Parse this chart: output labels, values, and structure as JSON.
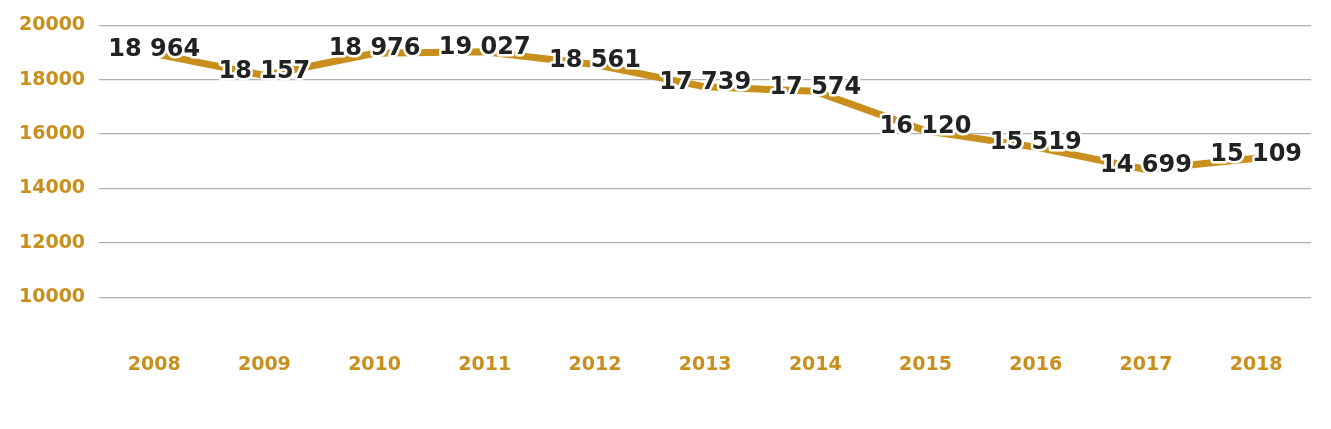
{
  "chart_data": {
    "type": "line",
    "categories": [
      "2008",
      "2009",
      "2010",
      "2011",
      "2012",
      "2013",
      "2014",
      "2015",
      "2016",
      "2017",
      "2018"
    ],
    "series": [
      {
        "color": "#c98f1c",
        "values": [
          18964,
          18157,
          18976,
          19027,
          18561,
          17739,
          17574,
          16120,
          15519,
          14699,
          15109
        ],
        "value_labels": [
          "18 964",
          "18 157",
          "18 976",
          "19 027",
          "18 561",
          "17 739",
          "17 574",
          "16 120",
          "15 519",
          "14 699",
          "15 109"
        ]
      }
    ],
    "ylim": [
      10000,
      20000
    ],
    "yticks": [
      10000,
      12000,
      14000,
      16000,
      18000,
      20000
    ],
    "grid": "y",
    "legend": false,
    "marker": "none",
    "line_style": "solid"
  }
}
